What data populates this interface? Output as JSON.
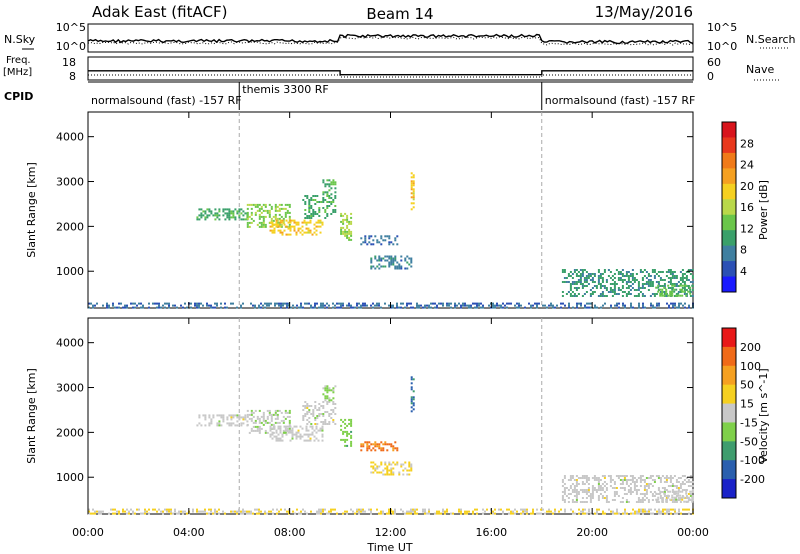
{
  "header": {
    "station": "Adak East (fitACF)",
    "beam": "Beam 14",
    "date": "13/May/2016"
  },
  "strip_panels": {
    "nsky_label": "N.Sky",
    "nsearch_label": "N.Search",
    "noise_ticks": [
      "10^5",
      "10^0"
    ],
    "freq_label_top": "Freq.",
    "freq_label_unit": "[MHz]",
    "freq_ticks": [
      "18",
      "8"
    ],
    "nave_label": "Nave",
    "nave_ticks": [
      "60",
      "0"
    ],
    "cpid_label": "CPID",
    "cpid_segments": [
      {
        "start_hour": 0,
        "end_hour": 6,
        "text": "normalsound (fast) -157 RF"
      },
      {
        "start_hour": 6,
        "end_hour": 18,
        "text": "themis 3300 RF"
      },
      {
        "start_hour": 18,
        "end_hour": 24,
        "text": "normalsound (fast) -157 RF"
      }
    ],
    "freq_mhz": [
      {
        "from": 0,
        "to": 10,
        "value": 12
      },
      {
        "from": 10,
        "to": 18,
        "value": 10.3
      },
      {
        "from": 18,
        "to": 24,
        "value": 12
      }
    ]
  },
  "time_axis": {
    "xlabel": "Time UT",
    "ticks": [
      "00:00",
      "04:00",
      "08:00",
      "12:00",
      "16:00",
      "20:00",
      "00:00"
    ],
    "xlim_hours": [
      0,
      24
    ]
  },
  "chart_data": [
    {
      "type": "heatmap",
      "ylabel": "Slant Range [km]",
      "ylim": [
        180,
        4550
      ],
      "yticks": [
        1000,
        2000,
        3000,
        4000
      ],
      "colorbar": {
        "label": "Power [dB]",
        "ticks": [
          "28",
          "24",
          "20",
          "16",
          "12",
          "8",
          "4"
        ],
        "range": [
          0,
          30
        ],
        "colors": [
          "#1a1aff",
          "#2b50b5",
          "#3f7fa0",
          "#3aa06a",
          "#6ac64a",
          "#b9d84a",
          "#f5d020",
          "#f5a020",
          "#f07a18",
          "#e8381c",
          "#d8141c"
        ]
      },
      "echo_regions": [
        {
          "t0": 4.3,
          "t1": 6.3,
          "r0": 2150,
          "r1": 2400,
          "value": 10
        },
        {
          "t0": 6.3,
          "t1": 8.0,
          "r0": 2000,
          "r1": 2500,
          "value": 13
        },
        {
          "t0": 7.2,
          "t1": 9.3,
          "r0": 1800,
          "r1": 2150,
          "value": 18
        },
        {
          "t0": 8.5,
          "t1": 9.8,
          "r0": 2200,
          "r1": 2700,
          "value": 10
        },
        {
          "t0": 9.3,
          "t1": 9.8,
          "r0": 2700,
          "r1": 3050,
          "value": 11
        },
        {
          "t0": 10.0,
          "t1": 10.4,
          "r0": 1700,
          "r1": 2300,
          "value": 14
        },
        {
          "t0": 10.8,
          "t1": 12.3,
          "r0": 1580,
          "r1": 1800,
          "value": 6
        },
        {
          "t0": 11.2,
          "t1": 12.8,
          "r0": 1050,
          "r1": 1350,
          "value": 7
        },
        {
          "t0": 12.8,
          "t1": 12.9,
          "r0": 2400,
          "r1": 3250,
          "value": 18
        },
        {
          "t0": 18.8,
          "t1": 24.0,
          "r0": 450,
          "r1": 1050,
          "value": 9
        },
        {
          "t0": 22.5,
          "t1": 24.0,
          "r0": 450,
          "r1": 700,
          "value": 12
        },
        {
          "t0": 0.0,
          "t1": 24.0,
          "r0": 180,
          "r1": 300,
          "value": 6
        }
      ]
    },
    {
      "type": "heatmap",
      "ylabel": "Slant Range [km]",
      "ylim": [
        180,
        4550
      ],
      "yticks": [
        1000,
        2000,
        3000,
        4000
      ],
      "colorbar": {
        "label": "Velocity [m s^-1]",
        "ticks": [
          "200",
          "100",
          "50",
          "15",
          "-15",
          "-50",
          "-100",
          "-200"
        ],
        "range": [
          -250,
          250
        ],
        "colors": [
          "#1a22c8",
          "#2a5fae",
          "#3f9d6e",
          "#7fd04a",
          "#c8c8c8",
          "#f5d020",
          "#f5a020",
          "#f06a18",
          "#e81818"
        ]
      },
      "echo_regions": [
        {
          "t0": 4.3,
          "t1": 6.3,
          "r0": 2150,
          "r1": 2400,
          "value": 0
        },
        {
          "t0": 6.3,
          "t1": 8.0,
          "r0": 2000,
          "r1": 2500,
          "value": -20
        },
        {
          "t0": 7.2,
          "t1": 9.3,
          "r0": 1800,
          "r1": 2150,
          "value": 0
        },
        {
          "t0": 8.5,
          "t1": 9.8,
          "r0": 2200,
          "r1": 2700,
          "value": 0
        },
        {
          "t0": 9.3,
          "t1": 9.8,
          "r0": 2700,
          "r1": 3050,
          "value": -40
        },
        {
          "t0": 10.0,
          "t1": 10.4,
          "r0": 1700,
          "r1": 2300,
          "value": -60
        },
        {
          "t0": 10.8,
          "t1": 12.3,
          "r0": 1580,
          "r1": 1800,
          "value": 150
        },
        {
          "t0": 11.2,
          "t1": 12.8,
          "r0": 1050,
          "r1": 1350,
          "value": 40
        },
        {
          "t0": 12.8,
          "t1": 12.9,
          "r0": 2400,
          "r1": 3250,
          "value": -150
        },
        {
          "t0": 18.8,
          "t1": 24.0,
          "r0": 450,
          "r1": 1050,
          "value": 0
        },
        {
          "t0": 22.5,
          "t1": 24.0,
          "r0": 450,
          "r1": 700,
          "value": 0
        },
        {
          "t0": 0.0,
          "t1": 24.0,
          "r0": 180,
          "r1": 300,
          "value": 30
        }
      ]
    }
  ]
}
